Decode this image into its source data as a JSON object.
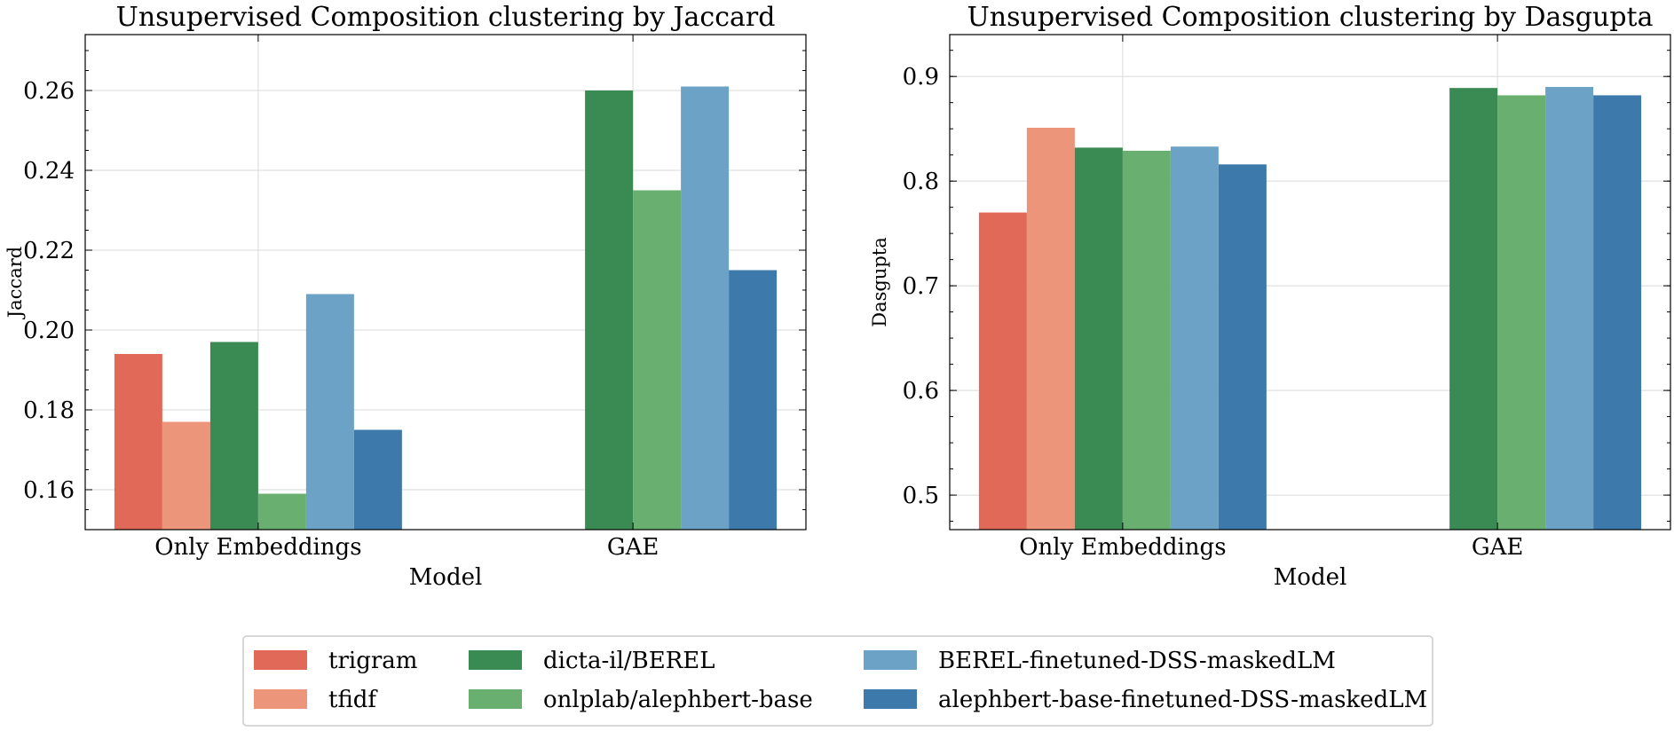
{
  "legend": {
    "entries": [
      {
        "label": "trigram",
        "color": "#e06a57"
      },
      {
        "label": "tfidf",
        "color": "#ec957b"
      },
      {
        "label": "dicta-il/BEREL",
        "color": "#3a8a53"
      },
      {
        "label": "onlplab/alephbert-base",
        "color": "#69b070"
      },
      {
        "label": "BEREL-finetuned-DSS-maskedLM",
        "color": "#6ba2c5"
      },
      {
        "label": "alephbert-base-finetuned-DSS-maskedLM",
        "color": "#3d7aab"
      }
    ]
  },
  "chart_data": [
    {
      "type": "bar",
      "title": "Unsupervised Composition clustering by Jaccard",
      "xlabel": "Model",
      "ylabel": "Jaccard",
      "categories": [
        "Only Embeddings",
        "GAE"
      ],
      "ylim": [
        0.15,
        0.274
      ],
      "yticks": [
        0.16,
        0.18,
        0.2,
        0.22,
        0.24,
        0.26
      ],
      "ytick_labels": [
        "0.16",
        "0.18",
        "0.20",
        "0.22",
        "0.24",
        "0.26"
      ],
      "grid": true,
      "series": [
        {
          "name": "trigram",
          "values": [
            0.194,
            null
          ]
        },
        {
          "name": "tfidf",
          "values": [
            0.177,
            null
          ]
        },
        {
          "name": "dicta-il/BEREL",
          "values": [
            0.197,
            0.26
          ]
        },
        {
          "name": "onlplab/alephbert-base",
          "values": [
            0.159,
            0.235
          ]
        },
        {
          "name": "BEREL-finetuned-DSS-maskedLM",
          "values": [
            0.209,
            0.261
          ]
        },
        {
          "name": "alephbert-base-finetuned-DSS-maskedLM",
          "values": [
            0.175,
            0.215
          ]
        }
      ]
    },
    {
      "type": "bar",
      "title": "Unsupervised Composition clustering by Dasgupta",
      "xlabel": "Model",
      "ylabel": "Dasgupta",
      "categories": [
        "Only Embeddings",
        "GAE"
      ],
      "ylim": [
        0.467,
        0.94
      ],
      "yticks": [
        0.5,
        0.6,
        0.7,
        0.8,
        0.9
      ],
      "ytick_labels": [
        "0.5",
        "0.6",
        "0.7",
        "0.8",
        "0.9"
      ],
      "grid": true,
      "series": [
        {
          "name": "trigram",
          "values": [
            0.77,
            null
          ]
        },
        {
          "name": "tfidf",
          "values": [
            0.851,
            null
          ]
        },
        {
          "name": "dicta-il/BEREL",
          "values": [
            0.832,
            0.889
          ]
        },
        {
          "name": "onlplab/alephbert-base",
          "values": [
            0.829,
            0.882
          ]
        },
        {
          "name": "BEREL-finetuned-DSS-maskedLM",
          "values": [
            0.833,
            0.89
          ]
        },
        {
          "name": "alephbert-base-finetuned-DSS-maskedLM",
          "values": [
            0.816,
            0.882
          ]
        }
      ]
    }
  ]
}
